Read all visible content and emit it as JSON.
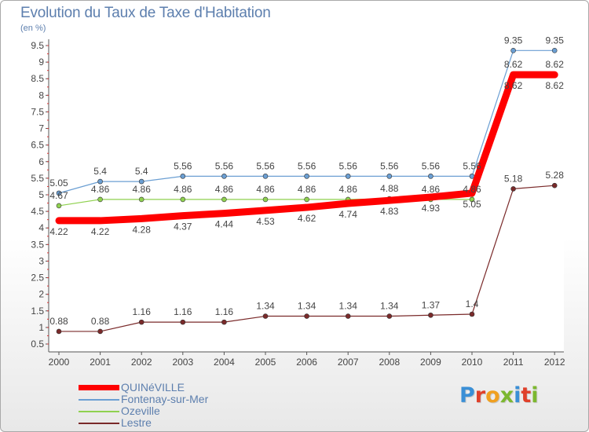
{
  "title": "Evolution du Taux de Taxe d'Habitation",
  "subtitle": "(en %)",
  "logo": {
    "text": "Proxiti",
    "letter_colors": [
      "#3a8fd6",
      "#e0402a",
      "#f0a020",
      "#7cb82f",
      "#3a8fd6",
      "#e0402a",
      "#7cb82f"
    ]
  },
  "chart_data": {
    "type": "line",
    "title": "Evolution du Taux de Taxe d'Habitation",
    "ylabel": "(en %)",
    "x": [
      "2000",
      "2001",
      "2002",
      "2003",
      "2004",
      "2005",
      "2006",
      "2007",
      "2008",
      "2009",
      "2010",
      "2011",
      "2012"
    ],
    "ylim": [
      0.5,
      9.5
    ],
    "y_ticks": [
      "0.5",
      "1",
      "1.5",
      "2",
      "2.5",
      "3",
      "3.5",
      "4",
      "4.5",
      "5",
      "5.5",
      "6",
      "6.5",
      "7",
      "7.5",
      "8",
      "8.5",
      "9",
      "9.5"
    ],
    "grid": false,
    "legend_position": "bottom-left",
    "series": [
      {
        "name": "QUINéVILLE",
        "color": "#ff0000",
        "values": [
          4.22,
          4.22,
          4.28,
          4.37,
          4.44,
          4.53,
          4.62,
          4.74,
          4.83,
          4.93,
          5.05,
          8.62,
          8.62
        ],
        "labels": [
          "4.22",
          "4.22",
          "4.28",
          "4.37",
          "4.44",
          "4.53",
          "4.62",
          "4.74",
          "4.83",
          "4.93",
          "5.05",
          "8.62",
          "8.62"
        ]
      },
      {
        "name": "Fontenay-sur-Mer",
        "color": "#6b9fd3",
        "values": [
          5.05,
          5.4,
          5.4,
          5.56,
          5.56,
          5.56,
          5.56,
          5.56,
          5.56,
          5.56,
          5.56,
          9.35,
          9.35
        ],
        "labels": [
          "5.05",
          "5.4",
          "5.4",
          "5.56",
          "5.56",
          "5.56",
          "5.56",
          "5.56",
          "5.56",
          "5.56",
          "5.56",
          "9.35",
          "9.35"
        ]
      },
      {
        "name": "Ozeville",
        "color": "#8fd14f",
        "values": [
          4.67,
          4.86,
          4.86,
          4.86,
          4.86,
          4.86,
          4.86,
          4.86,
          4.88,
          4.86,
          4.86,
          8.62,
          8.62
        ],
        "labels": [
          "4.67",
          "4.86",
          "4.86",
          "4.86",
          "4.86",
          "4.86",
          "4.86",
          "4.86",
          "4.88",
          "4.86",
          "4.86",
          "8.62",
          "8.62"
        ]
      },
      {
        "name": "Lestre",
        "color": "#7a2a2a",
        "values": [
          0.88,
          0.88,
          1.16,
          1.16,
          1.16,
          1.34,
          1.34,
          1.34,
          1.34,
          1.37,
          1.4,
          5.18,
          5.28
        ],
        "labels": [
          "0.88",
          "0.88",
          "1.16",
          "1.16",
          "1.16",
          "1.34",
          "1.34",
          "1.34",
          "1.34",
          "1.37",
          "1.4",
          "5.18",
          "5.28"
        ]
      }
    ]
  }
}
